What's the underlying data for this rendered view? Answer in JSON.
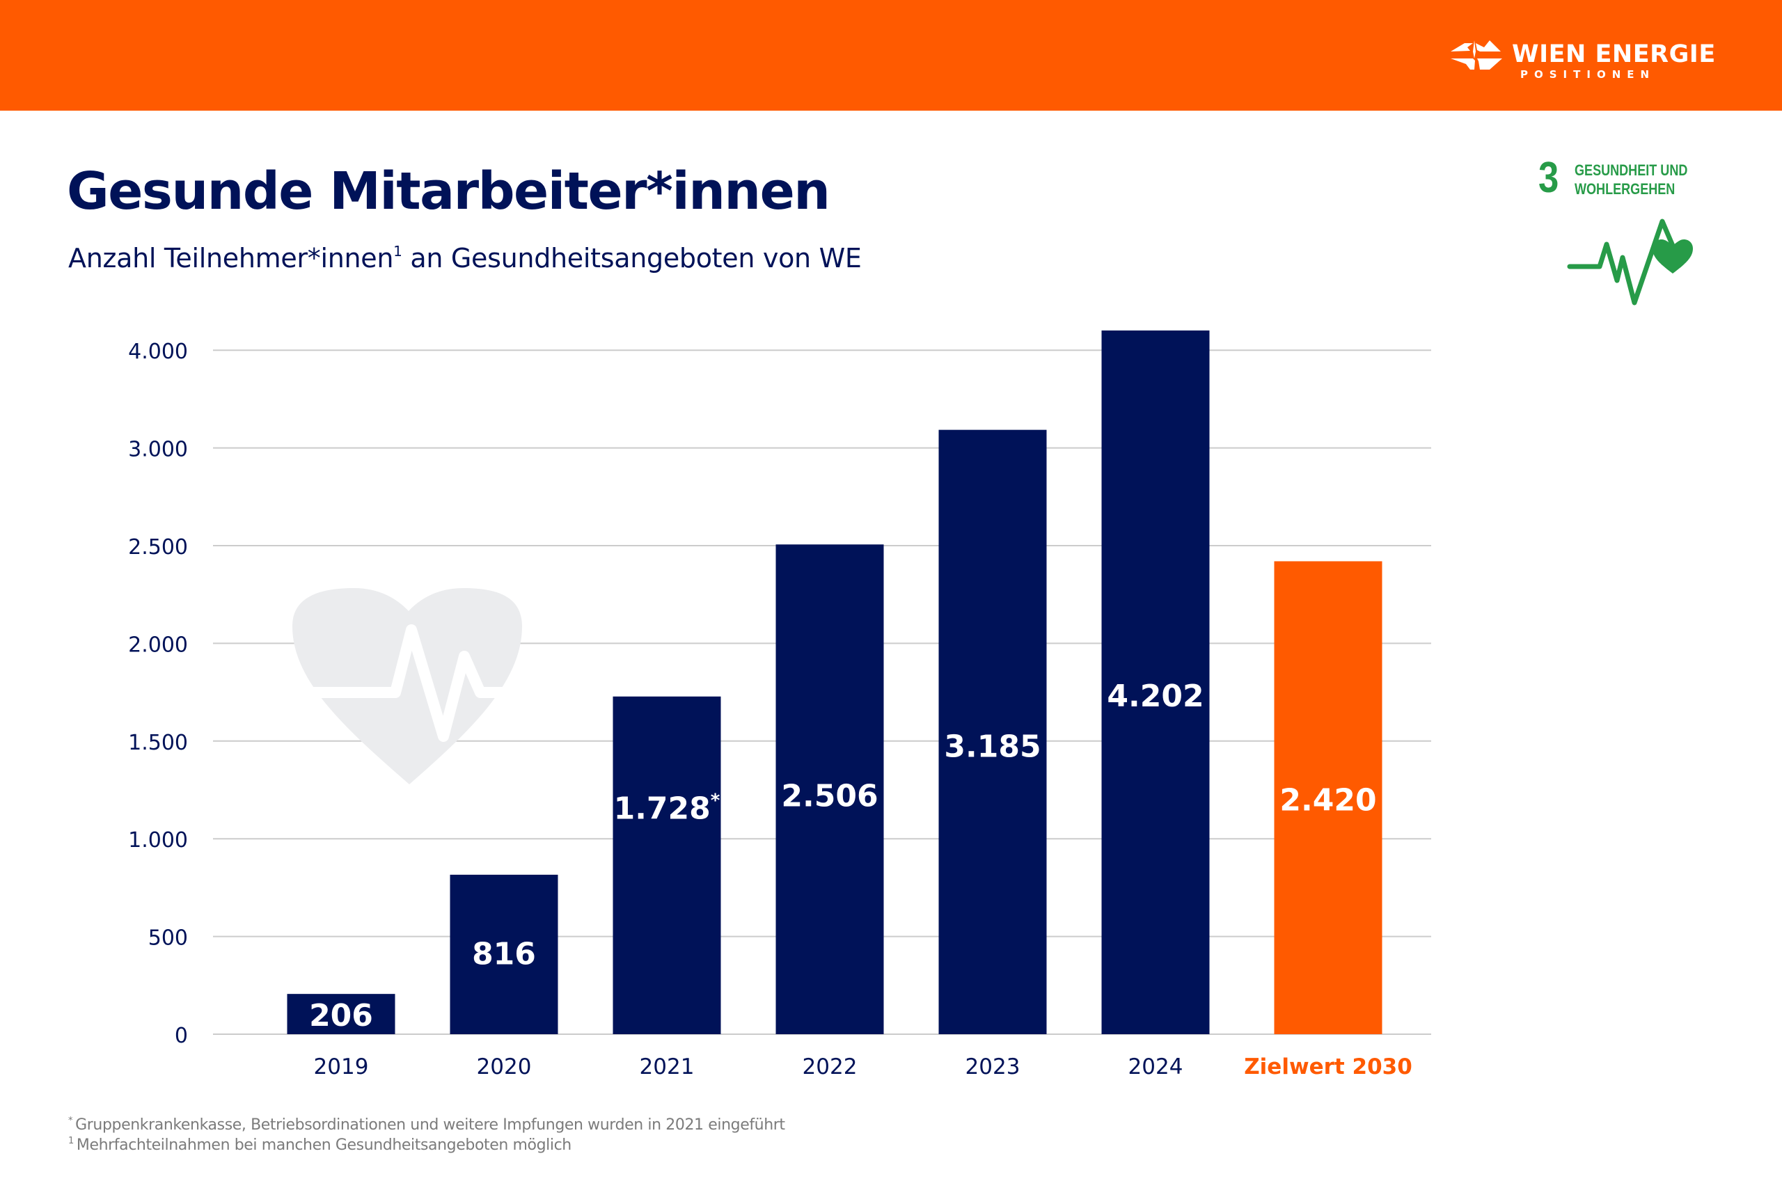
{
  "header": {
    "brand_name": "WIEN ENERGIE",
    "brand_sub": "POSITIONEN",
    "band_color": "#FF5A00"
  },
  "title": "Gesunde Mitarbeiter*innen",
  "subtitle": {
    "before": "Anzahl Teilnehmer*innen",
    "marker": "1",
    "after": " an Gesundheitsangeboten von WE"
  },
  "sdg": {
    "number": "3",
    "line1": "GESUNDHEIT UND",
    "line2": "WOHLERGEHEN",
    "color": "#279B48"
  },
  "colors": {
    "primary": "#001258",
    "accent": "#FF5A00",
    "grid": "#cccccc",
    "watermark": "#ebecee"
  },
  "chart_data": {
    "type": "bar",
    "title": "Gesunde Mitarbeiter*innen",
    "subtitle": "Anzahl Teilnehmer*innen¹ an Gesundheitsangeboten von WE",
    "xlabel": "",
    "ylabel": "",
    "categories": [
      "2019",
      "2020",
      "2021",
      "2022",
      "2023",
      "2024",
      "Zielwert 2030"
    ],
    "values": [
      206,
      816,
      1728,
      2506,
      3185,
      4202,
      2420
    ],
    "data_labels": [
      "206",
      "816",
      "1.728",
      "2.506",
      "3.185",
      "4.202",
      "2.420"
    ],
    "label_markers": [
      "",
      "",
      "*",
      "",
      "",
      "",
      ""
    ],
    "bar_kinds": [
      "actual",
      "actual",
      "actual",
      "actual",
      "actual",
      "actual",
      "target"
    ],
    "y_ticks": [
      0,
      500,
      1000,
      1500,
      2000,
      2500,
      3000,
      4000
    ],
    "y_tick_labels": [
      "0",
      "500",
      "1.000",
      "1.500",
      "2.000",
      "2.500",
      "3.000",
      "4.000"
    ],
    "y_axis_note": "tick labels are equally spaced (non-linear scale between 3.000 and 4.000)",
    "ylim": [
      0,
      4000
    ],
    "grid": true,
    "legend": "none"
  },
  "footnotes": [
    {
      "marker": "*",
      "text": "Gruppenkrankenkasse, Betriebsordinationen und weitere Impfungen wurden in 2021 eingeführt"
    },
    {
      "marker": "1",
      "text": "Mehrfachteilnahmen bei manchen Gesundheitsangeboten möglich"
    }
  ]
}
